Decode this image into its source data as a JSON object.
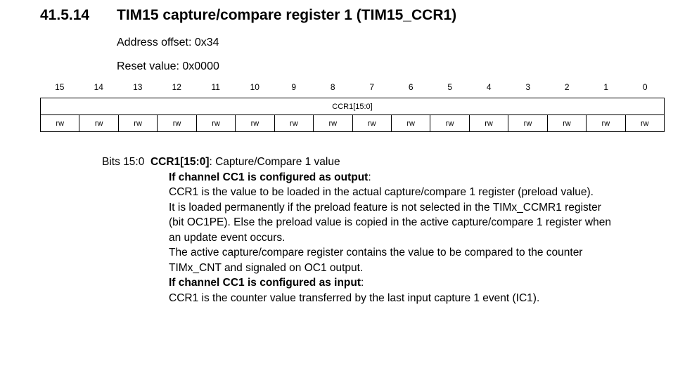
{
  "section": {
    "number": "41.5.14",
    "title": "TIM15 capture/compare register 1 (TIM15_CCR1)"
  },
  "address_offset": "Address offset: 0x34",
  "reset_value": "Reset value: 0x0000",
  "register": {
    "bit_numbers": [
      "15",
      "14",
      "13",
      "12",
      "11",
      "10",
      "9",
      "8",
      "7",
      "6",
      "5",
      "4",
      "3",
      "2",
      "1",
      "0"
    ],
    "field": "CCR1[15:0]",
    "access": [
      "rw",
      "rw",
      "rw",
      "rw",
      "rw",
      "rw",
      "rw",
      "rw",
      "rw",
      "rw",
      "rw",
      "rw",
      "rw",
      "rw",
      "rw",
      "rw"
    ]
  },
  "description": {
    "bits_label": "Bits 15:0",
    "field_name": "CCR1[15:0]",
    "field_summary": ": Capture/Compare 1 value",
    "output_heading": "If channel CC1 is configured as output",
    "output_lines": [
      "CCR1 is the value to be loaded in the actual capture/compare 1 register (preload value).",
      "It is loaded permanently if the preload feature is not selected in the TIMx_CCMR1 register",
      "(bit OC1PE). Else the preload value is copied in the active capture/compare 1 register when",
      "an update event occurs.",
      "The active capture/compare register contains the value to be compared to the counter",
      "TIMx_CNT and signaled on OC1 output."
    ],
    "input_heading": "If channel CC1 is configured as input",
    "input_lines": [
      "CCR1 is the counter value transferred by the last input capture 1 event (IC1)."
    ],
    "colon": ":"
  }
}
